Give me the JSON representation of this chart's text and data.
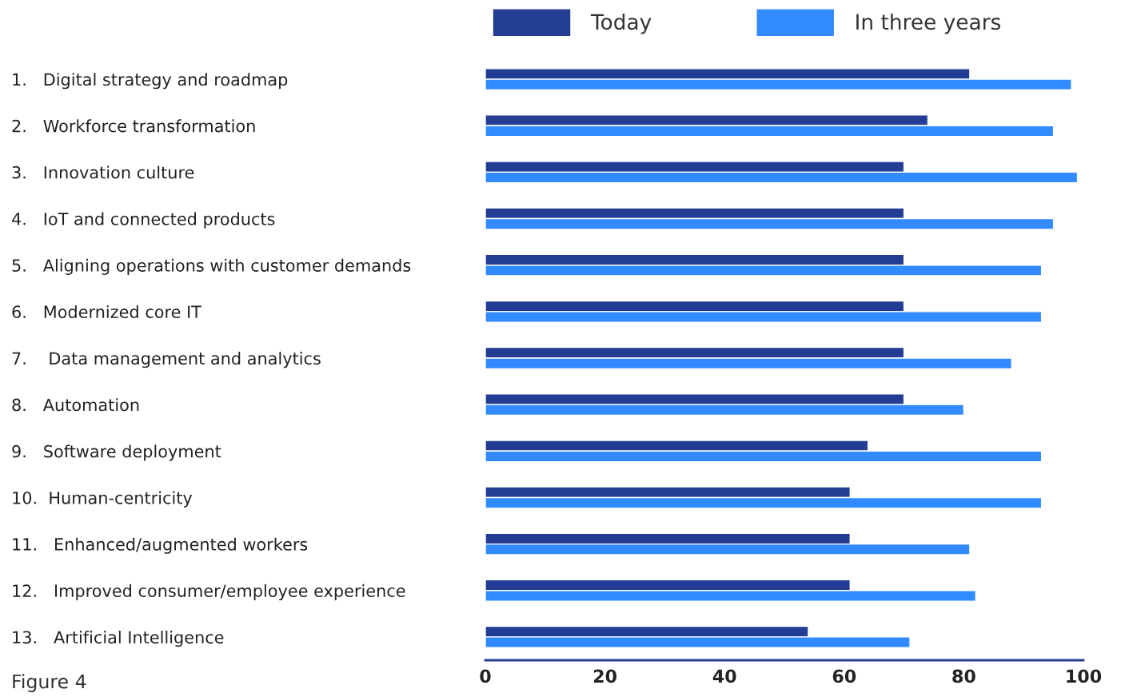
{
  "chart_data": {
    "type": "bar",
    "orientation": "horizontal",
    "categories": [
      "1.   Digital strategy and roadmap",
      "2.   Workforce transformation",
      "3.   Innovation culture",
      "4.   IoT and connected products",
      "5.   Aligning operations with customer demands",
      "6.   Modernized core IT",
      "7.    Data management and analytics",
      "8.   Automation",
      "9.   Software deployment",
      "10.  Human-centricity",
      "11.   Enhanced/augmented workers",
      "12.   Improved consumer/employee experience",
      "13.   Artificial Intelligence"
    ],
    "series": [
      {
        "name": "Today",
        "color": "#233d94",
        "values": [
          81,
          74,
          70,
          70,
          70,
          70,
          70,
          70,
          64,
          61,
          61,
          61,
          54
        ]
      },
      {
        "name": "In three years",
        "color": "#318bff",
        "values": [
          98,
          95,
          99,
          95,
          93,
          93,
          88,
          80,
          93,
          93,
          81,
          82,
          71
        ]
      }
    ],
    "xlim": [
      0,
      100
    ],
    "xticks": [
      0,
      20,
      40,
      60,
      80,
      100
    ],
    "grid": false,
    "legend": "top",
    "annotations": [
      "Figure 4"
    ]
  }
}
